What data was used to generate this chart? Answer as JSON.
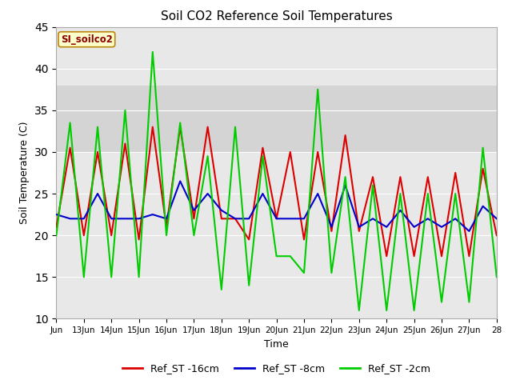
{
  "title": "Soil CO2 Reference Soil Temperatures",
  "xlabel": "Time",
  "ylabel": "Soil Temperature (C)",
  "ylim": [
    10,
    45
  ],
  "yticks": [
    10,
    15,
    20,
    25,
    30,
    35,
    40,
    45
  ],
  "x_tick_labels": [
    "Jun",
    "13Jun",
    "14Jun",
    "15Jun",
    "16Jun",
    "17Jun",
    "18Jun",
    "19Jun",
    "20Jun",
    "21Jun",
    "22Jun",
    "23Jun",
    "24Jun",
    "25Jun",
    "26Jun",
    "27Jun",
    "28"
  ],
  "background_color": "#ffffff",
  "plot_bg_color": "#e8e8e8",
  "shaded_band": [
    30,
    38
  ],
  "shaded_band_color": "#d4d4d4",
  "legend_label": "SI_soilco2",
  "legend_bg": "#ffffcc",
  "legend_border": "#b8860b",
  "legend_text_color": "#8b0000",
  "series": {
    "Ref_ST-16cm": {
      "color": "#dd0000",
      "linewidth": 1.5
    },
    "Ref_ST-8cm": {
      "color": "#0000cc",
      "linewidth": 1.5
    },
    "Ref_ST-2cm": {
      "color": "#00cc00",
      "linewidth": 1.5
    }
  },
  "x_values": [
    0,
    0.5,
    1,
    1.5,
    2,
    2.5,
    3,
    3.5,
    4,
    4.5,
    5,
    5.5,
    6,
    6.5,
    7,
    7.5,
    8,
    8.5,
    9,
    9.5,
    10,
    10.5,
    11,
    11.5,
    12,
    12.5,
    13,
    13.5,
    14,
    14.5,
    15,
    15.5,
    16
  ],
  "y_16cm": [
    21,
    30.5,
    20,
    30,
    20,
    31,
    19.5,
    33,
    21,
    33,
    22,
    33,
    22,
    22,
    19.5,
    30.5,
    22,
    30,
    19.5,
    30,
    20.5,
    32,
    20.5,
    27,
    17.5,
    27,
    17.5,
    27,
    17.5,
    27.5,
    17.5,
    28,
    20
  ],
  "y_8cm": [
    22.5,
    22,
    22,
    25,
    22,
    22,
    22,
    22.5,
    22,
    26.5,
    23,
    25,
    23,
    22,
    22,
    25,
    22,
    22,
    22,
    25,
    21,
    26,
    21,
    22,
    21,
    23,
    21,
    22,
    21,
    22,
    20.5,
    23.5,
    22
  ],
  "y_2cm": [
    20,
    33.5,
    15,
    33,
    15,
    35,
    15,
    42,
    20,
    33.5,
    20,
    29.5,
    13.5,
    33,
    14,
    29.5,
    17.5,
    17.5,
    15.5,
    37.5,
    15.5,
    27,
    11,
    26,
    11,
    25,
    11,
    25,
    12,
    25,
    12,
    30.5,
    15
  ]
}
